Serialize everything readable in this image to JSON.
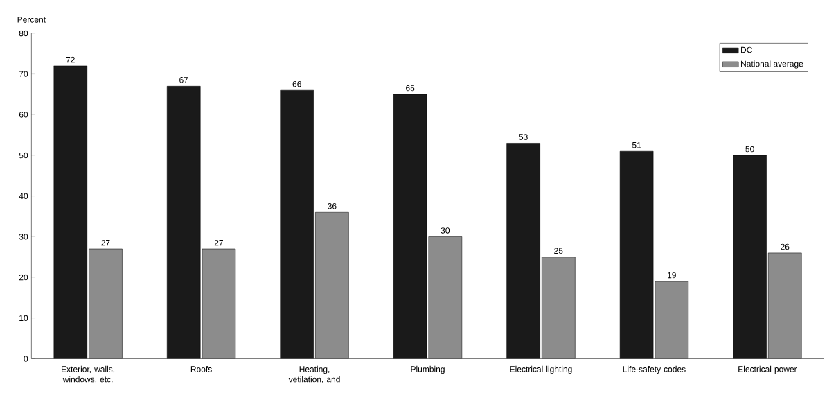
{
  "chart_data": {
    "type": "bar",
    "ylabel": "Percent",
    "categories": [
      "Exterior, walls, windows, etc.",
      "Roofs",
      "Heating, vetilation, and",
      "Plumbing",
      "Electrical lighting",
      "Life-safety codes",
      "Electrical power"
    ],
    "series": [
      {
        "name": "DC",
        "color": "#1a1a1a",
        "values": [
          72,
          67,
          66,
          65,
          53,
          51,
          50
        ]
      },
      {
        "name": "National average",
        "color": "#8c8c8c",
        "values": [
          27,
          27,
          36,
          30,
          25,
          19,
          26
        ]
      }
    ],
    "ylim": [
      0,
      80
    ],
    "yticks": [
      0,
      10,
      20,
      30,
      40,
      50,
      60,
      70,
      80
    ],
    "data_labels": true,
    "legend": "top right",
    "grid": false
  }
}
